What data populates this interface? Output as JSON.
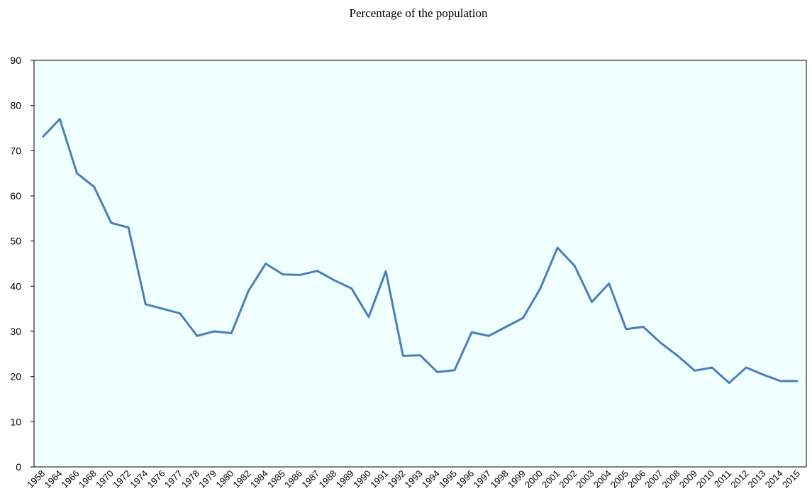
{
  "chart_data": {
    "type": "line",
    "title": "Percentage of the population",
    "categories": [
      "1958",
      "1964",
      "1966",
      "1968",
      "1970",
      "1972",
      "1974",
      "1976",
      "1977",
      "1978",
      "1979",
      "1980",
      "1982",
      "1984",
      "1985",
      "1986",
      "1987",
      "1988",
      "1989",
      "1990",
      "1991",
      "1992",
      "1993",
      "1994",
      "1995",
      "1996",
      "1997",
      "1998",
      "1999",
      "2000",
      "2001",
      "2002",
      "2003",
      "2004",
      "2005",
      "2006",
      "2007",
      "2008",
      "2009",
      "2010",
      "2011",
      "2012",
      "2013",
      "2014",
      "2015"
    ],
    "values": [
      73,
      77,
      65,
      62,
      54,
      53,
      36,
      35,
      34,
      29,
      30,
      29.6,
      39,
      45,
      42.6,
      42.5,
      43.4,
      41.3,
      39.5,
      33.2,
      43.3,
      24.6,
      24.7,
      21,
      21.4,
      29.8,
      29,
      31,
      33,
      39.5,
      48.5,
      44.5,
      36.5,
      40.6,
      30.5,
      31,
      27.5,
      24.6,
      21.3,
      22,
      18.6,
      22,
      20.4,
      19,
      19
    ],
    "color": "#4a7ebb",
    "ylim": [
      0,
      90
    ],
    "yticks": [
      0,
      10,
      20,
      30,
      40,
      50,
      60,
      70,
      80,
      90
    ],
    "grid": false
  }
}
